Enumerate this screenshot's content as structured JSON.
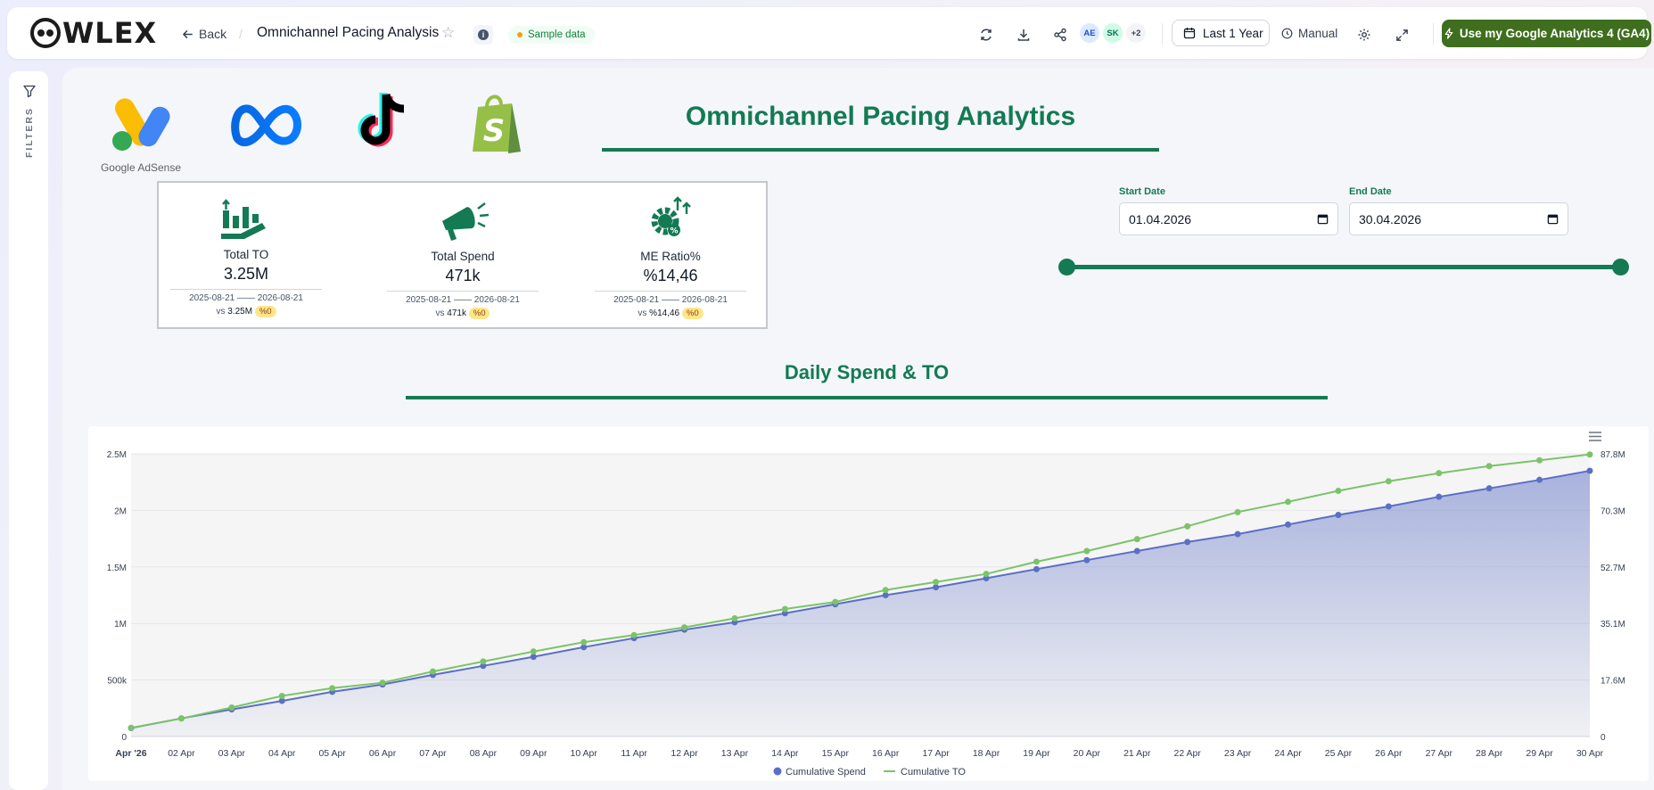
{
  "header": {
    "logo_text": "WLEX",
    "back_label": "Back",
    "separator": "/",
    "page_title": "Omnichannel Pacing Analysis",
    "sample_badge": "Sample data",
    "avatars": [
      "AE",
      "SK",
      "+2"
    ],
    "date_range": "Last 1 Year",
    "refresh_mode": "Manual",
    "ga_button": "Use my Google Analytics 4 (GA4)"
  },
  "sidebar": {
    "filters_label": "FILTERS"
  },
  "brands": {
    "adsense_label": "Google AdSense"
  },
  "dashboard_title": "Omnichannel Pacing Analytics",
  "kpis": [
    {
      "label": "Total TO",
      "value": "3.25M",
      "range_start": "2025-08-21",
      "range_end": "2026-08-21",
      "vs_prefix": "vs",
      "vs_value": "3.25M",
      "change": "%0"
    },
    {
      "label": "Total Spend",
      "value": "471k",
      "range_start": "2025-08-21",
      "range_end": "2026-08-21",
      "vs_prefix": "vs",
      "vs_value": "471k",
      "change": "%0"
    },
    {
      "label": "ME Ratio%",
      "value": "%14,46",
      "range_start": "2025-08-21",
      "range_end": "2026-08-21",
      "vs_prefix": "vs",
      "vs_value": "%14,46",
      "change": "%0"
    }
  ],
  "date_filter": {
    "start_label": "Start Date",
    "start_value": "01.04.2026",
    "end_label": "End Date",
    "end_value": "30.04.2026"
  },
  "colors": {
    "accent": "#137a53",
    "spend": "#5b6fc4",
    "to": "#7bc36a"
  },
  "chart_data": {
    "type": "line",
    "title": "Daily Spend & TO",
    "categories": [
      "Apr '26",
      "02 Apr",
      "03 Apr",
      "04 Apr",
      "05 Apr",
      "06 Apr",
      "07 Apr",
      "08 Apr",
      "09 Apr",
      "10 Apr",
      "11 Apr",
      "12 Apr",
      "13 Apr",
      "14 Apr",
      "15 Apr",
      "16 Apr",
      "17 Apr",
      "18 Apr",
      "19 Apr",
      "20 Apr",
      "21 Apr",
      "22 Apr",
      "23 Apr",
      "24 Apr",
      "25 Apr",
      "26 Apr",
      "27 Apr",
      "28 Apr",
      "29 Apr",
      "30 Apr"
    ],
    "y_left": {
      "ticks": [
        "0",
        "500k",
        "1M",
        "1.5M",
        "2M",
        "2.5M"
      ],
      "min": 0,
      "max": 2500000
    },
    "y_right": {
      "ticks": [
        "0",
        "17.6M",
        "35.1M",
        "52.7M",
        "70.3M",
        "87.8M"
      ],
      "min": 0,
      "max": 87800000
    },
    "series": [
      {
        "name": "Cumulative Spend",
        "axis": "left",
        "area": true,
        "values": [
          75000,
          160000,
          240000,
          315000,
          395000,
          460000,
          545000,
          625000,
          705000,
          790000,
          870000,
          945000,
          1010000,
          1090000,
          1170000,
          1250000,
          1320000,
          1400000,
          1480000,
          1560000,
          1640000,
          1720000,
          1790000,
          1875000,
          1960000,
          2035000,
          2120000,
          2195000,
          2270000,
          2350000
        ]
      },
      {
        "name": "Cumulative TO",
        "axis": "right",
        "area": false,
        "values": [
          2700000,
          5600000,
          9000000,
          12600000,
          15000000,
          16700000,
          20200000,
          23300000,
          26400000,
          29300000,
          31500000,
          33900000,
          36700000,
          39600000,
          41800000,
          45500000,
          48000000,
          50500000,
          54300000,
          57600000,
          61300000,
          65300000,
          69700000,
          72900000,
          76300000,
          79300000,
          81800000,
          84000000,
          85800000,
          87600000
        ]
      }
    ],
    "legend_position": "bottom-center",
    "grid": true
  }
}
